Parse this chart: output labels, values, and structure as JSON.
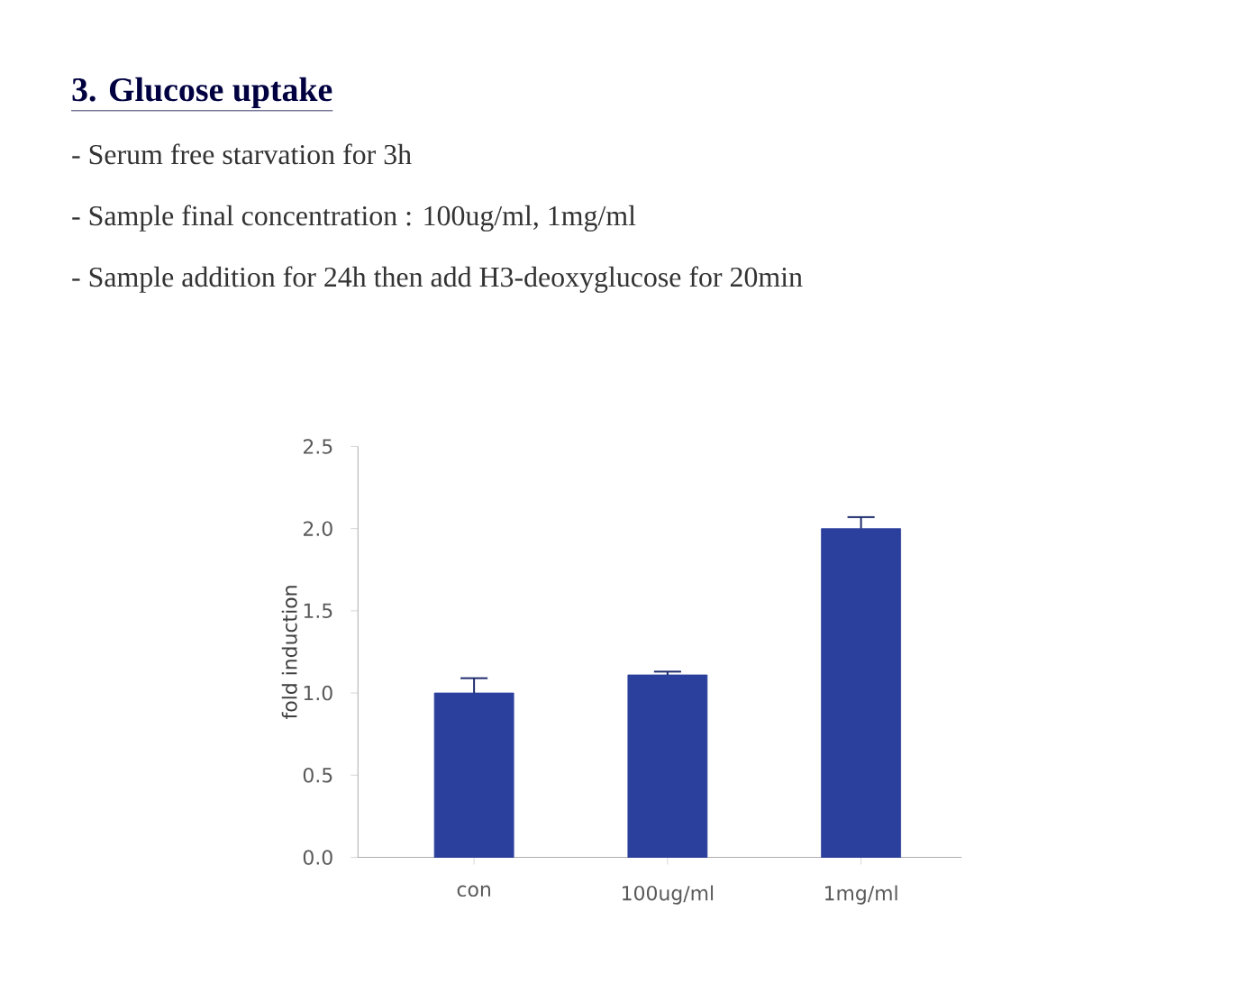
{
  "chart_data": {
    "type": "bar",
    "title": "3. Glucose uptake",
    "annotations": [
      "- Serum free starvation for 3h",
      "- Sample final concentration : 100ug/ml, 1mg/ml",
      "- Sample addition for 24h then add H3-deoxyglucose for 20min"
    ],
    "ylabel": "fold induction",
    "categories": [
      "con",
      "100ug/ml",
      "1mg/ml"
    ],
    "values": [
      1.0,
      1.11,
      2.0
    ],
    "errors": [
      0.09,
      0.02,
      0.07
    ],
    "color": "#2b3f9c",
    "ylim": [
      0,
      2.5
    ],
    "yticks": [
      {
        "value": 0,
        "label": "0.0"
      },
      {
        "value": 0.5,
        "label": "0.5"
      },
      {
        "value": 1,
        "label": "1.0"
      },
      {
        "value": 1.5,
        "label": "1.5"
      },
      {
        "value": 2,
        "label": "2.0"
      },
      {
        "value": 2.5,
        "label": "2.5"
      }
    ]
  }
}
